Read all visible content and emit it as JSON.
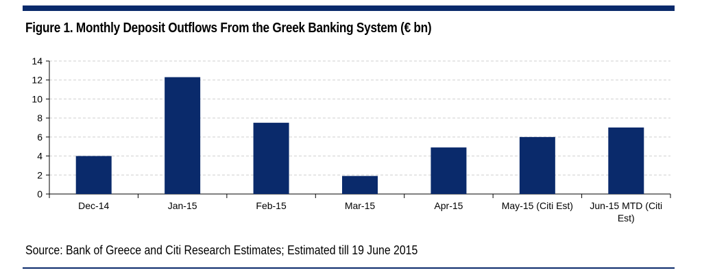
{
  "header": {
    "title": "Figure 1. Monthly Deposit Outflows From the Greek Banking System (€ bn)"
  },
  "footer": {
    "source": "Source: Bank of Greece and Citi Research Estimates; Estimated till 19 June 2015"
  },
  "colors": {
    "bar": "#0a2a6b",
    "rule": "#0a2a6b",
    "grid": "#cfcfcf"
  },
  "chart_data": {
    "type": "bar",
    "title": "Figure 1. Monthly Deposit Outflows From the Greek Banking System (€ bn)",
    "xlabel": "",
    "ylabel": "",
    "categories": [
      [
        "Dec-14"
      ],
      [
        "Jan-15"
      ],
      [
        "Feb-15"
      ],
      [
        "Mar-15"
      ],
      [
        "Apr-15"
      ],
      [
        "May-15 (Citi Est)"
      ],
      [
        "Jun-15 MTD (Citi",
        "Est)"
      ]
    ],
    "values": [
      4.0,
      12.3,
      7.5,
      1.9,
      4.9,
      6.0,
      7.0
    ],
    "ylim": [
      0,
      14
    ],
    "yticks": [
      "0",
      "2",
      "4",
      "6",
      "8",
      "10",
      "12",
      "14"
    ],
    "grid": "horizontal dashed",
    "legend": "none"
  }
}
